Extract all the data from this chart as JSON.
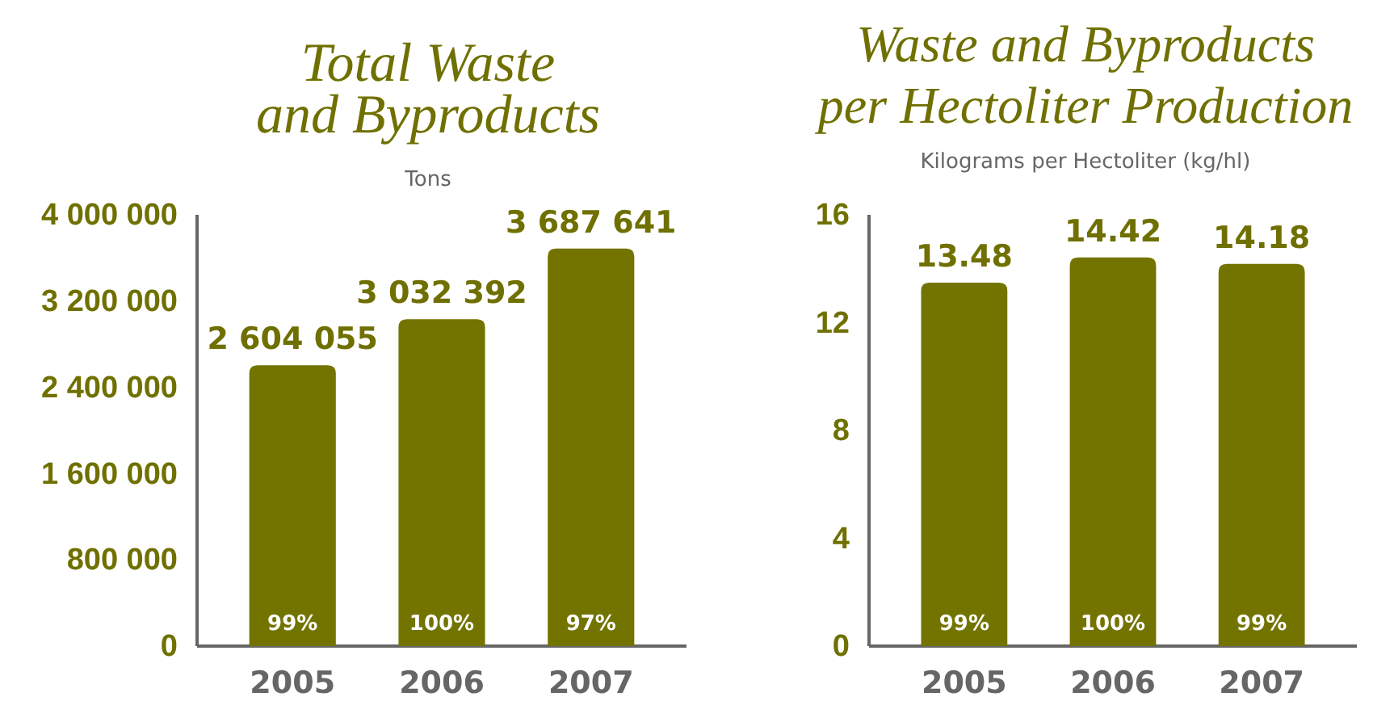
{
  "chart_data": [
    {
      "type": "bar",
      "title": "Total Waste\nand Byproducts",
      "subtitle": "Tons",
      "categories": [
        "2005",
        "2006",
        "2007"
      ],
      "values": [
        2604055,
        3032392,
        3687641
      ],
      "color": "#737400",
      "value_labels": [
        "2 604 055",
        "3 032 392",
        "3 687 641"
      ],
      "ylim": [
        0,
        4000000
      ],
      "yticks": [
        {
          "value": 0,
          "label": "0"
        },
        {
          "value": 800000,
          "label": "800 000"
        },
        {
          "value": 1600000,
          "label": "1 600 000"
        },
        {
          "value": 2400000,
          "label": "2 400 000"
        },
        {
          "value": 3200000,
          "label": "3 200 000"
        },
        {
          "value": 4000000,
          "label": "4 000 000"
        }
      ],
      "annotations": [
        {
          "text": "99%",
          "x": "2005",
          "y": 0
        },
        {
          "text": "100%",
          "x": "2006",
          "y": 0
        },
        {
          "text": "97%",
          "x": "2007",
          "y": 0
        }
      ]
    },
    {
      "type": "bar",
      "title": "Waste and Byproducts\nper Hectoliter Production",
      "subtitle": "Kilograms per Hectoliter (kg/hl)",
      "categories": [
        "2005",
        "2006",
        "2007"
      ],
      "values": [
        13.48,
        14.42,
        14.18
      ],
      "color": "#737400",
      "data_labels": true,
      "ylim": [
        0,
        16
      ],
      "yticks": [
        0,
        4,
        8,
        12,
        16
      ],
      "annotations": [
        {
          "text": "99%",
          "x": "2005",
          "y": 0
        },
        {
          "text": "100%",
          "x": "2006",
          "y": 0
        },
        {
          "text": "99%",
          "x": "2007",
          "y": 0
        }
      ]
    }
  ]
}
